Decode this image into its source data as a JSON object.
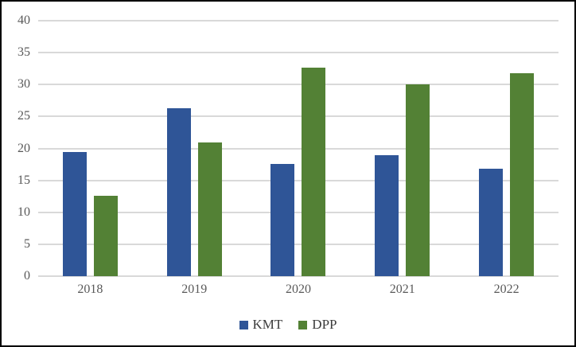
{
  "chart_data": {
    "type": "bar",
    "title": "",
    "categories": [
      "2018",
      "2019",
      "2020",
      "2021",
      "2022"
    ],
    "series": [
      {
        "name": "KMT",
        "color": "#2F5597",
        "values": [
          19.5,
          26.3,
          17.6,
          18.9,
          16.8
        ]
      },
      {
        "name": "DPP",
        "color": "#538135",
        "values": [
          12.6,
          20.9,
          32.7,
          30.0,
          31.8
        ]
      }
    ],
    "ylim": [
      0,
      40
    ],
    "yticks": [
      0,
      5,
      10,
      15,
      20,
      25,
      30,
      35,
      40
    ],
    "xlabel": "",
    "ylabel": "",
    "grid": true,
    "legend_position": "bottom",
    "legend_entries": [
      "KMT",
      "DPP"
    ]
  },
  "colors": {
    "background": "#FFFFFF",
    "frame_border": "#000000",
    "gridline": "#D9D9D9",
    "axis_line": "#D9D9D9",
    "tick_label": "#595959",
    "category_label": "#595959",
    "legend_label": "#3B3B3B",
    "kmt_bar": "#2F5597",
    "dpp_bar": "#538135"
  }
}
